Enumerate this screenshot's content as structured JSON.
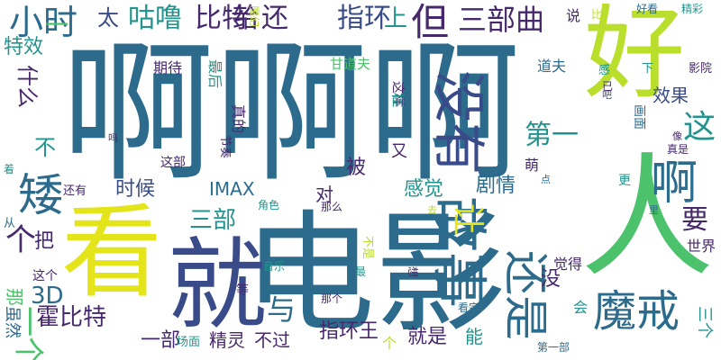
{
  "palette": {
    "blue": "#2d6b8c",
    "darkblue": "#3a4b8a",
    "purple": "#46296c",
    "teal": "#23948d",
    "green": "#4cc26c",
    "lime": "#b9de2c",
    "yellow": "#e4e41a"
  },
  "words": [
    {
      "text": "啊啊啊",
      "color": "blue"
    },
    {
      "text": "电影",
      "color": "blue"
    },
    {
      "text": "看",
      "color": "yellow"
    },
    {
      "text": "就",
      "color": "darkblue"
    },
    {
      "text": "好",
      "color": "lime"
    },
    {
      "text": "人",
      "color": "green"
    },
    {
      "text": "故事",
      "color": "blue"
    },
    {
      "text": "没有",
      "color": "darkblue"
    },
    {
      "text": "魔戒",
      "color": "blue"
    },
    {
      "text": "还是",
      "color": "blue"
    },
    {
      "text": "啊",
      "color": "blue"
    },
    {
      "text": "矮",
      "color": "blue"
    },
    {
      "text": "小时",
      "color": "blue"
    },
    {
      "text": "咕噜",
      "color": "teal"
    },
    {
      "text": "比特",
      "color": "purple"
    },
    {
      "text": "给",
      "color": "purple"
    },
    {
      "text": "还",
      "color": "purple"
    },
    {
      "text": "太",
      "color": "darkblue"
    },
    {
      "text": "指环",
      "color": "darkblue"
    },
    {
      "text": "上",
      "color": "teal"
    },
    {
      "text": "但",
      "color": "purple"
    },
    {
      "text": "三部曲",
      "color": "purple"
    },
    {
      "text": "说",
      "color": "purple"
    },
    {
      "text": "比",
      "color": "lime"
    },
    {
      "text": "好看",
      "color": "blue"
    },
    {
      "text": "精彩",
      "color": "teal"
    },
    {
      "text": "一",
      "color": "green"
    },
    {
      "text": "特效",
      "color": "teal"
    },
    {
      "text": "什么",
      "color": "purple"
    },
    {
      "text": "不",
      "color": "teal"
    },
    {
      "text": "期待",
      "color": "purple"
    },
    {
      "text": "最后",
      "color": "teal"
    },
    {
      "text": "甘道夫",
      "color": "green"
    },
    {
      "text": "这样",
      "color": "purple"
    },
    {
      "text": "道夫",
      "color": "blue"
    },
    {
      "text": "下",
      "color": "teal"
    },
    {
      "text": "影院",
      "color": "purple"
    },
    {
      "text": "效果",
      "color": "darkblue"
    },
    {
      "text": "这",
      "color": "teal"
    },
    {
      "text": "第一",
      "color": "teal"
    },
    {
      "text": "感",
      "color": "teal"
    },
    {
      "text": "画面",
      "color": "blue"
    },
    {
      "text": "吧",
      "color": "darkblue"
    },
    {
      "text": "像",
      "color": "purple"
    },
    {
      "text": "真是",
      "color": "purple"
    },
    {
      "text": "萌",
      "color": "purple"
    },
    {
      "text": "点",
      "color": "blue"
    },
    {
      "text": "更",
      "color": "teal"
    },
    {
      "text": "时候",
      "color": "darkblue"
    },
    {
      "text": "IMAX",
      "color": "blue"
    },
    {
      "text": "被",
      "color": "purple"
    },
    {
      "text": "对",
      "color": "purple"
    },
    {
      "text": "感觉",
      "color": "teal"
    },
    {
      "text": "剧情",
      "color": "blue"
    },
    {
      "text": "要",
      "color": "purple"
    },
    {
      "text": "让",
      "color": "yellow"
    },
    {
      "text": "三部",
      "color": "teal"
    },
    {
      "text": "个",
      "color": "purple"
    },
    {
      "text": "把",
      "color": "purple"
    },
    {
      "text": "与",
      "color": "blue"
    },
    {
      "text": "3D",
      "color": "blue"
    },
    {
      "text": "霍比特",
      "color": "purple"
    },
    {
      "text": "一部",
      "color": "purple"
    },
    {
      "text": "精灵",
      "color": "purple"
    },
    {
      "text": "不过",
      "color": "purple"
    },
    {
      "text": "指环王",
      "color": "purple"
    },
    {
      "text": "就是",
      "color": "purple"
    },
    {
      "text": "能",
      "color": "teal"
    },
    {
      "text": "没",
      "color": "purple"
    },
    {
      "text": "觉得",
      "color": "purple"
    },
    {
      "text": "世界",
      "color": "purple"
    },
    {
      "text": "会",
      "color": "teal"
    },
    {
      "text": "一个",
      "color": "green"
    },
    {
      "text": "这个",
      "color": "purple"
    },
    {
      "text": "那",
      "color": "green"
    },
    {
      "text": "虽然",
      "color": "blue"
    },
    {
      "text": "等",
      "color": "purple"
    },
    {
      "text": "场面",
      "color": "teal"
    },
    {
      "text": "个",
      "color": "lime"
    },
    {
      "text": "第一部",
      "color": "blue"
    },
    {
      "text": "最",
      "color": "teal"
    },
    {
      "text": "看完",
      "color": "blue"
    },
    {
      "text": "那个",
      "color": "purple"
    },
    {
      "text": "音乐",
      "color": "teal"
    },
    {
      "text": "角色",
      "color": "teal"
    },
    {
      "text": "那么",
      "color": "purple"
    },
    {
      "text": "还有",
      "color": "purple"
    },
    {
      "text": "这部",
      "color": "purple"
    },
    {
      "text": "节奏",
      "color": "purple"
    },
    {
      "text": "真的",
      "color": "purple"
    },
    {
      "text": "又",
      "color": "purple"
    },
    {
      "text": "吗",
      "color": "purple"
    },
    {
      "text": "着",
      "color": "teal"
    },
    {
      "text": "从",
      "color": "blue"
    },
    {
      "text": "去",
      "color": "lime"
    },
    {
      "text": "里",
      "color": "blue"
    },
    {
      "text": "想",
      "color": "purple"
    },
    {
      "text": "不是",
      "color": "lime"
    },
    {
      "text": "魔幻",
      "color": "lime"
    },
    {
      "text": "前",
      "color": "teal"
    },
    {
      "text": "已",
      "color": "purple"
    },
    {
      "text": "三个",
      "color": "teal"
    }
  ]
}
